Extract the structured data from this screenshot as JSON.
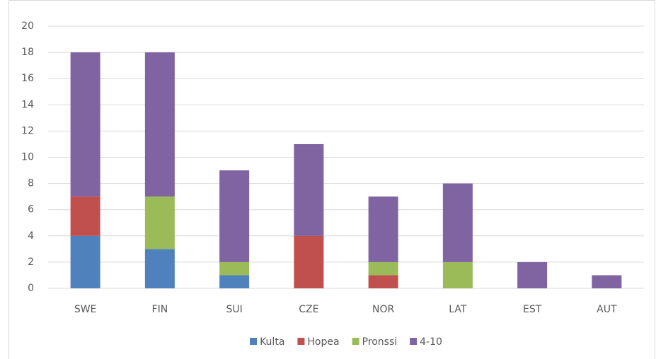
{
  "chart_data": {
    "type": "stacked_bar",
    "categories": [
      "SWE",
      "FIN",
      "SUI",
      "CZE",
      "NOR",
      "LAT",
      "EST",
      "AUT"
    ],
    "series": [
      {
        "name": "Kulta",
        "color": "#4f81bd",
        "values": [
          4,
          3,
          1,
          0,
          0,
          0,
          0,
          0
        ]
      },
      {
        "name": "Hopea",
        "color": "#c0504d",
        "values": [
          3,
          0,
          0,
          4,
          1,
          0,
          0,
          0
        ]
      },
      {
        "name": "Pronssi",
        "color": "#9bbb59",
        "values": [
          0,
          4,
          1,
          0,
          1,
          2,
          0,
          0
        ]
      },
      {
        "name": "4-10",
        "color": "#8064a2",
        "values": [
          11,
          11,
          7,
          7,
          5,
          6,
          2,
          1
        ]
      }
    ],
    "ylim": [
      0,
      20
    ],
    "yticks": [
      0,
      2,
      4,
      6,
      8,
      10,
      12,
      14,
      16,
      18,
      20
    ],
    "grid": true,
    "legend": "bottom"
  }
}
